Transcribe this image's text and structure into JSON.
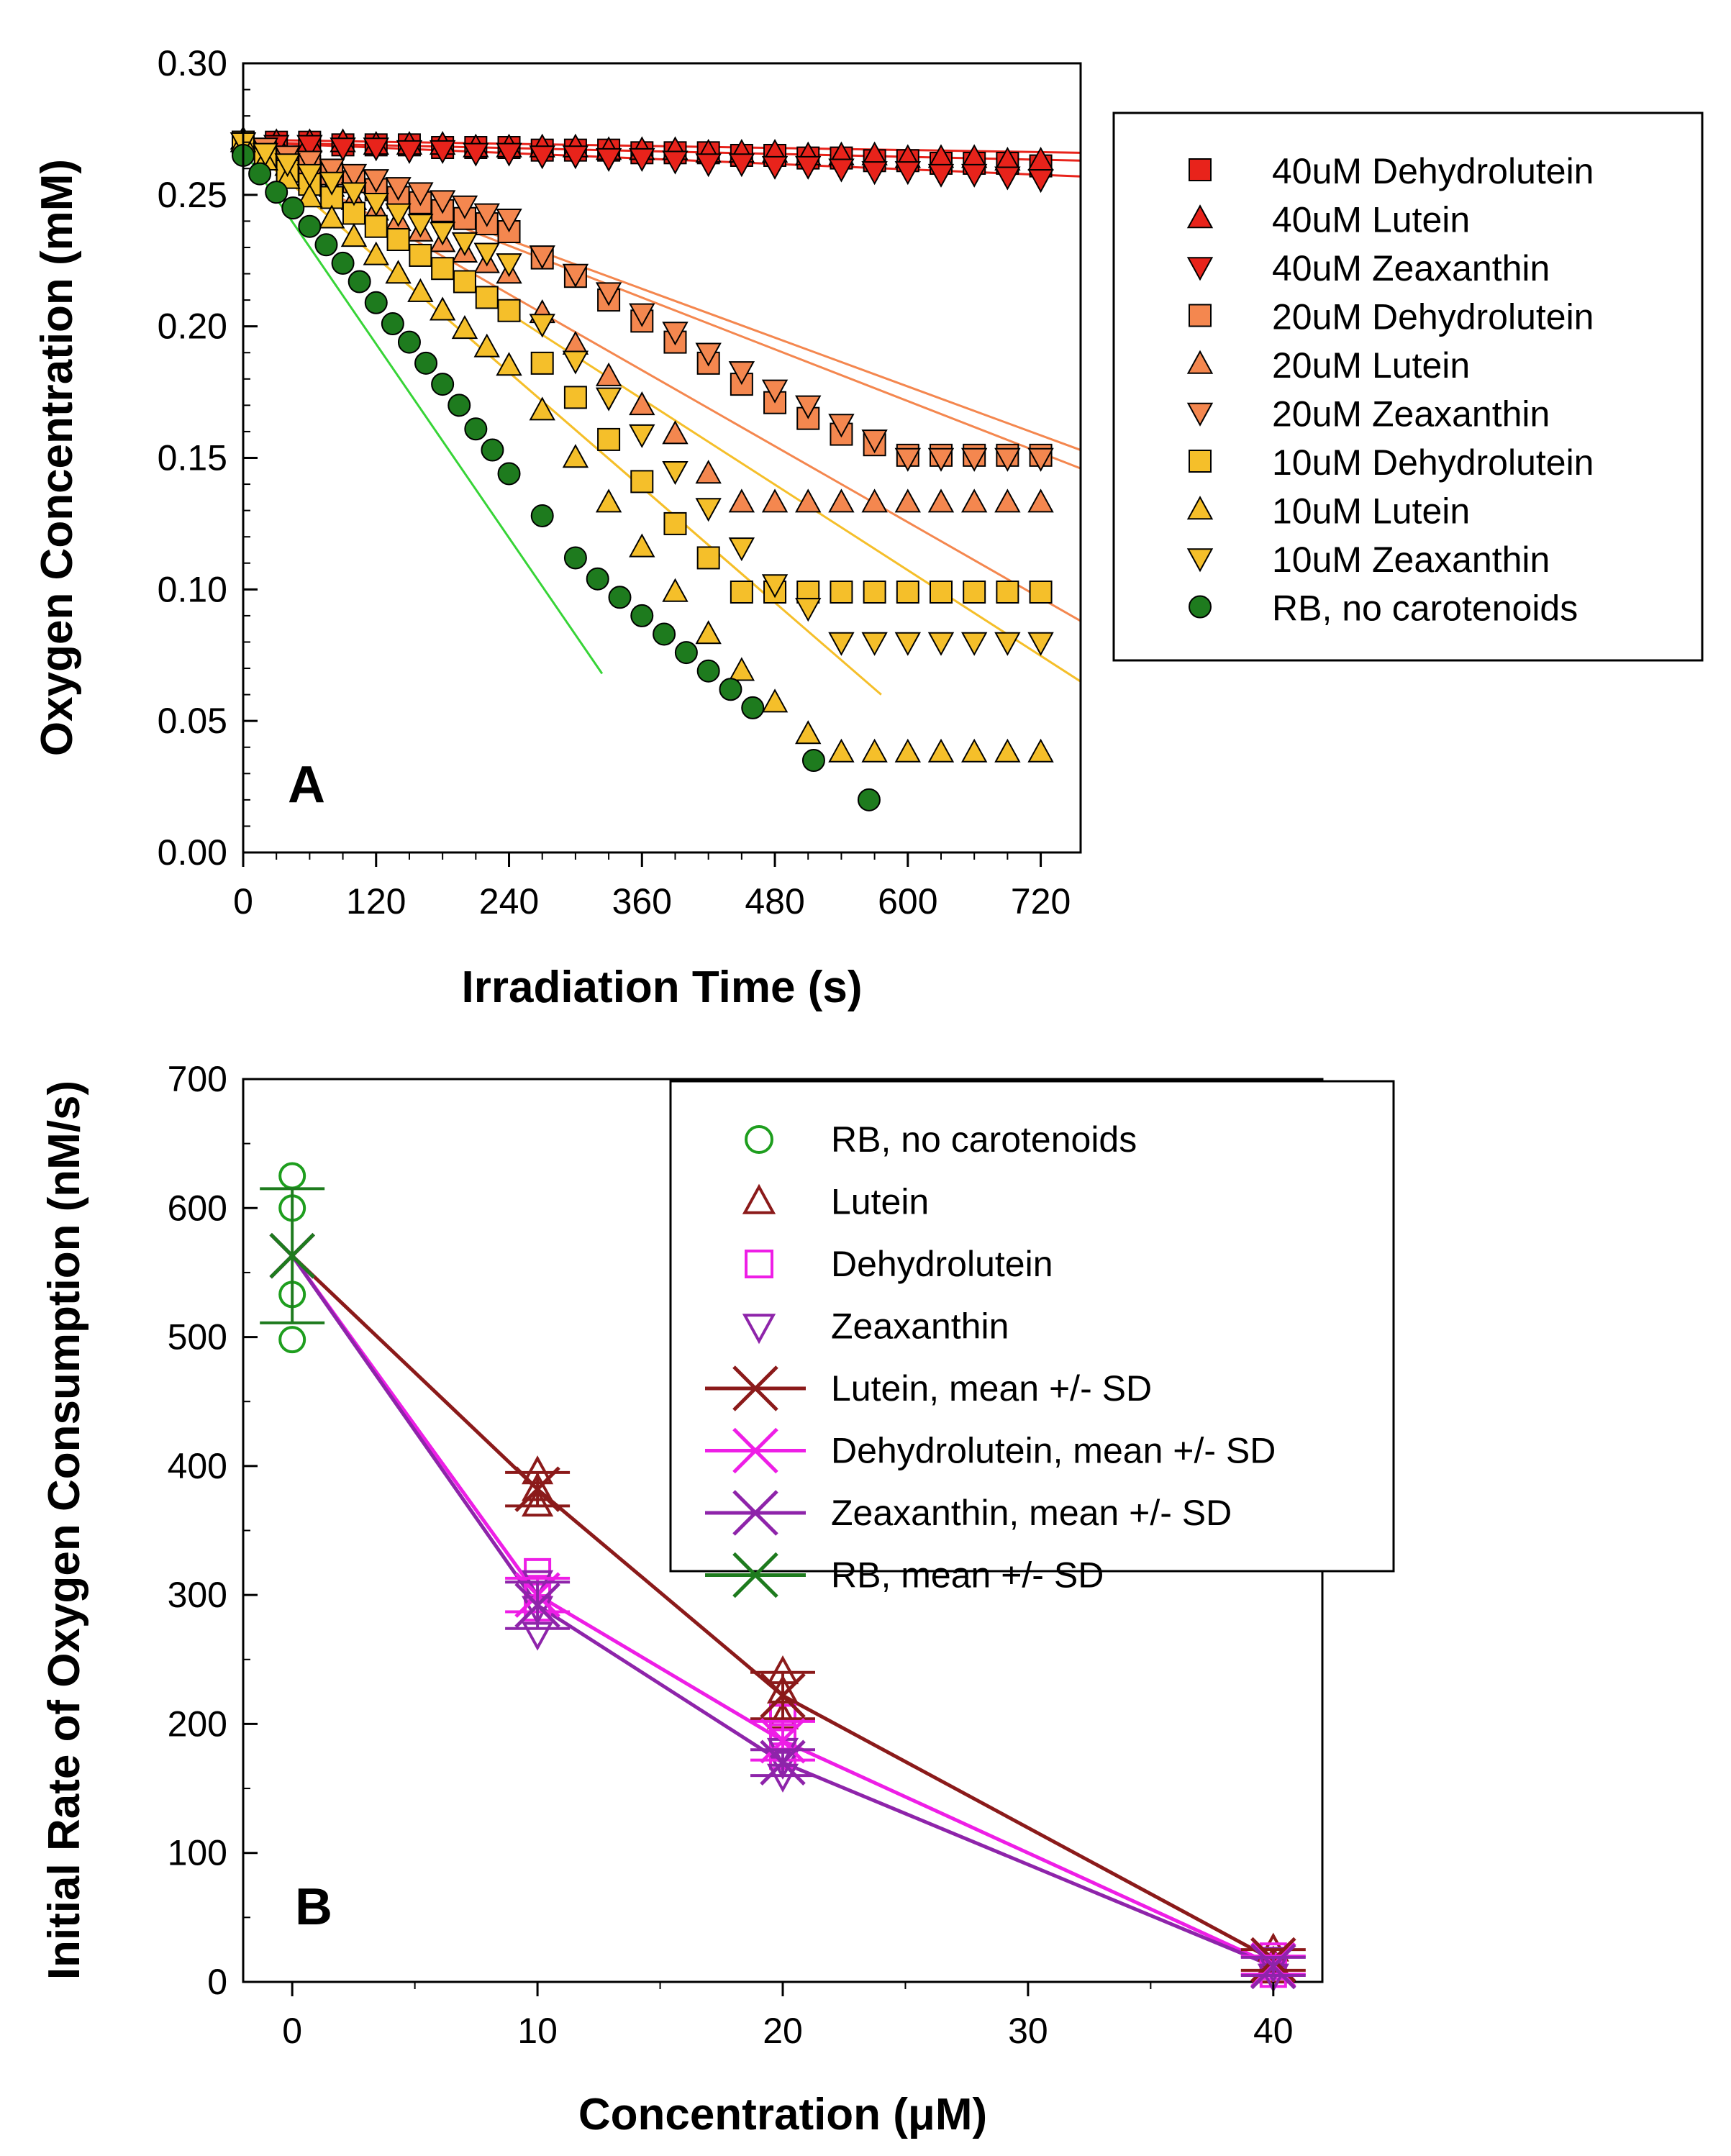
{
  "chart_data": [
    {
      "panel": "A",
      "type": "scatter",
      "xlabel": "Irradiation Time (s)",
      "ylabel": "Oxygen Concentration (mM)",
      "xlim": [
        0,
        756
      ],
      "ylim": [
        0,
        0.3
      ],
      "xticks": [
        0,
        120,
        240,
        360,
        480,
        600,
        720
      ],
      "yticks": [
        0.0,
        0.05,
        0.1,
        0.15,
        0.2,
        0.25,
        0.3
      ],
      "ytick_labels": [
        "0.00",
        "0.05",
        "0.10",
        "0.15",
        "0.20",
        "0.25",
        "0.30"
      ],
      "panel_label": "A",
      "legend_position": "right",
      "series": [
        {
          "name": "40uM Dehydrolutein",
          "marker": "square",
          "color": "#e8231b",
          "x": [
            0,
            30,
            60,
            90,
            120,
            150,
            180,
            210,
            240,
            270,
            300,
            330,
            360,
            390,
            420,
            450,
            480,
            510,
            540,
            570,
            600,
            630,
            660,
            690,
            720
          ],
          "y": [
            0.27,
            0.27,
            0.27,
            0.269,
            0.269,
            0.269,
            0.268,
            0.268,
            0.268,
            0.267,
            0.267,
            0.267,
            0.266,
            0.266,
            0.266,
            0.265,
            0.265,
            0.264,
            0.264,
            0.263,
            0.263,
            0.262,
            0.262,
            0.262,
            0.261
          ],
          "fit": [
            0,
            756,
            0.27,
            0.263
          ]
        },
        {
          "name": "40uM Lutein",
          "marker": "triangle-up",
          "color": "#e8231b",
          "x": [
            0,
            30,
            60,
            90,
            120,
            150,
            180,
            210,
            240,
            270,
            300,
            330,
            360,
            390,
            420,
            450,
            480,
            510,
            540,
            570,
            600,
            630,
            660,
            690,
            720
          ],
          "y": [
            0.271,
            0.27,
            0.27,
            0.27,
            0.269,
            0.269,
            0.269,
            0.268,
            0.268,
            0.268,
            0.268,
            0.267,
            0.267,
            0.267,
            0.266,
            0.266,
            0.266,
            0.265,
            0.265,
            0.265,
            0.264,
            0.264,
            0.264,
            0.263,
            0.263
          ],
          "fit": [
            0,
            756,
            0.271,
            0.266
          ]
        },
        {
          "name": "40uM Zeaxanthin",
          "marker": "triangle-down",
          "color": "#e8231b",
          "x": [
            0,
            30,
            60,
            90,
            120,
            150,
            180,
            210,
            240,
            270,
            300,
            330,
            360,
            390,
            420,
            450,
            480,
            510,
            540,
            570,
            600,
            630,
            660,
            690,
            720
          ],
          "y": [
            0.27,
            0.269,
            0.269,
            0.268,
            0.268,
            0.267,
            0.267,
            0.266,
            0.266,
            0.265,
            0.265,
            0.264,
            0.264,
            0.263,
            0.262,
            0.262,
            0.261,
            0.261,
            0.26,
            0.259,
            0.259,
            0.258,
            0.258,
            0.257,
            0.256
          ],
          "fit": [
            0,
            756,
            0.27,
            0.257
          ]
        },
        {
          "name": "20uM Dehydrolutein",
          "marker": "square",
          "color": "#f4874f",
          "x": [
            0,
            20,
            40,
            60,
            80,
            100,
            120,
            140,
            160,
            180,
            200,
            220,
            240,
            270,
            300,
            330,
            360,
            390,
            420,
            450,
            480,
            510,
            540,
            570,
            600,
            630,
            660,
            690,
            720
          ],
          "y": [
            0.27,
            0.267,
            0.264,
            0.261,
            0.258,
            0.255,
            0.252,
            0.249,
            0.247,
            0.244,
            0.241,
            0.239,
            0.236,
            0.226,
            0.219,
            0.21,
            0.202,
            0.194,
            0.186,
            0.178,
            0.171,
            0.165,
            0.159,
            0.155,
            0.151,
            0.151,
            0.151,
            0.151,
            0.151
          ],
          "fit": [
            0,
            756,
            0.27,
            0.146
          ]
        },
        {
          "name": "20uM Lutein",
          "marker": "triangle-up",
          "color": "#f4874f",
          "x": [
            0,
            20,
            40,
            60,
            80,
            100,
            120,
            140,
            160,
            180,
            200,
            220,
            240,
            270,
            300,
            330,
            360,
            390,
            420,
            450,
            480,
            510,
            540,
            570,
            600,
            630,
            660,
            690,
            720
          ],
          "y": [
            0.27,
            0.265,
            0.261,
            0.257,
            0.253,
            0.248,
            0.244,
            0.24,
            0.236,
            0.232,
            0.228,
            0.224,
            0.22,
            0.205,
            0.193,
            0.181,
            0.17,
            0.159,
            0.144,
            0.133,
            0.133,
            0.133,
            0.133,
            0.133,
            0.133,
            0.133,
            0.133,
            0.133,
            0.133
          ],
          "fit": [
            0,
            756,
            0.27,
            0.088
          ]
        },
        {
          "name": "20uM Zeaxanthin",
          "marker": "triangle-down",
          "color": "#f4874f",
          "x": [
            0,
            20,
            40,
            60,
            80,
            100,
            120,
            140,
            160,
            180,
            200,
            220,
            240,
            270,
            300,
            330,
            360,
            390,
            420,
            450,
            480,
            510,
            540,
            570,
            600,
            630,
            660,
            690,
            720
          ],
          "y": [
            0.27,
            0.268,
            0.265,
            0.263,
            0.26,
            0.258,
            0.256,
            0.253,
            0.251,
            0.248,
            0.246,
            0.243,
            0.241,
            0.227,
            0.22,
            0.213,
            0.205,
            0.198,
            0.19,
            0.183,
            0.176,
            0.17,
            0.163,
            0.157,
            0.15,
            0.15,
            0.15,
            0.15,
            0.15
          ],
          "fit": [
            0,
            756,
            0.27,
            0.153
          ]
        },
        {
          "name": "10uM Dehydrolutein",
          "marker": "square",
          "color": "#f5bf2a",
          "x": [
            0,
            20,
            40,
            60,
            80,
            100,
            120,
            140,
            160,
            180,
            200,
            220,
            240,
            270,
            300,
            330,
            360,
            390,
            420,
            450,
            480,
            510,
            540,
            570,
            600,
            630,
            660,
            690,
            720
          ],
          "y": [
            0.27,
            0.265,
            0.259,
            0.254,
            0.249,
            0.243,
            0.238,
            0.233,
            0.227,
            0.222,
            0.217,
            0.211,
            0.206,
            0.186,
            0.173,
            0.157,
            0.141,
            0.125,
            0.112,
            0.099,
            0.099,
            0.099,
            0.099,
            0.099,
            0.099,
            0.099,
            0.099,
            0.099,
            0.099
          ],
          "fit": [
            0,
            480,
            0.27,
            0.095
          ]
        },
        {
          "name": "10uM Lutein",
          "marker": "triangle-up",
          "color": "#f5bf2a",
          "x": [
            0,
            20,
            40,
            60,
            80,
            100,
            120,
            140,
            160,
            180,
            200,
            220,
            240,
            270,
            300,
            330,
            360,
            390,
            420,
            450,
            480,
            510,
            540,
            570,
            600,
            630,
            660,
            690,
            720
          ],
          "y": [
            0.27,
            0.263,
            0.256,
            0.249,
            0.241,
            0.234,
            0.227,
            0.22,
            0.213,
            0.206,
            0.199,
            0.192,
            0.185,
            0.168,
            0.15,
            0.133,
            0.116,
            0.099,
            0.083,
            0.069,
            0.057,
            0.045,
            0.038,
            0.038,
            0.038,
            0.038,
            0.038,
            0.038,
            0.038
          ],
          "fit": [
            0,
            576,
            0.27,
            0.06
          ]
        },
        {
          "name": "10uM Zeaxanthin",
          "marker": "triangle-down",
          "color": "#f5bf2a",
          "x": [
            0,
            20,
            40,
            60,
            80,
            100,
            120,
            140,
            160,
            180,
            200,
            220,
            240,
            270,
            300,
            330,
            360,
            390,
            420,
            450,
            480,
            510,
            540,
            570,
            600,
            630,
            660,
            690,
            720
          ],
          "y": [
            0.27,
            0.266,
            0.262,
            0.258,
            0.255,
            0.251,
            0.247,
            0.243,
            0.239,
            0.236,
            0.232,
            0.228,
            0.224,
            0.201,
            0.187,
            0.173,
            0.159,
            0.145,
            0.131,
            0.116,
            0.102,
            0.093,
            0.08,
            0.08,
            0.08,
            0.08,
            0.08,
            0.08,
            0.08
          ],
          "fit": [
            0,
            756,
            0.27,
            0.065
          ]
        },
        {
          "name": "RB, no carotenoids",
          "marker": "circle",
          "color": "#1e7b1e",
          "x": [
            0,
            15,
            30,
            45,
            60,
            75,
            90,
            105,
            120,
            135,
            150,
            165,
            180,
            195,
            210,
            225,
            240,
            270,
            300,
            320,
            340,
            360,
            380,
            400,
            420,
            440,
            460,
            515,
            565
          ],
          "y": [
            0.265,
            0.258,
            0.251,
            0.245,
            0.238,
            0.231,
            0.224,
            0.217,
            0.209,
            0.201,
            0.194,
            0.186,
            0.178,
            0.17,
            0.161,
            0.153,
            0.144,
            0.128,
            0.112,
            0.104,
            0.097,
            0.09,
            0.083,
            0.076,
            0.069,
            0.062,
            0.055,
            0.035,
            0.02
          ],
          "fit": [
            0,
            324,
            0.267,
            0.068
          ]
        }
      ]
    },
    {
      "panel": "B",
      "type": "scatter",
      "xlabel": "Concentration (μM)",
      "ylabel": "Initial Rate of Oxygen Consumption (nM/s)",
      "xlim": [
        -2,
        42
      ],
      "ylim": [
        0,
        700
      ],
      "xticks": [
        0,
        10,
        20,
        30,
        40
      ],
      "yticks": [
        0,
        100,
        200,
        300,
        400,
        500,
        600,
        700
      ],
      "panel_label": "B",
      "legend_position": "top-right",
      "series": [
        {
          "name": "RB, no carotenoids",
          "marker": "circle-open",
          "color": "#1e9e1e",
          "points": [
            [
              0,
              625
            ],
            [
              0,
              600
            ],
            [
              0,
              533
            ],
            [
              0,
              498
            ]
          ]
        },
        {
          "name": "Lutein",
          "marker": "triangle-up-open",
          "color": "#8b1a1a",
          "points": [
            [
              10,
              395
            ],
            [
              10,
              382
            ],
            [
              10,
              370
            ],
            [
              20,
              240
            ],
            [
              20,
              225
            ],
            [
              20,
              205
            ],
            [
              40,
              25
            ],
            [
              40,
              15
            ],
            [
              40,
              8
            ]
          ]
        },
        {
          "name": "Dehydrolutein",
          "marker": "square-open",
          "color": "#ee1ee6",
          "points": [
            [
              10,
              318
            ],
            [
              10,
              305
            ],
            [
              10,
              290
            ],
            [
              20,
              205
            ],
            [
              20,
              190
            ],
            [
              20,
              175
            ],
            [
              40,
              20
            ],
            [
              40,
              12
            ],
            [
              40,
              6
            ]
          ]
        },
        {
          "name": "Zeaxanthin",
          "marker": "triangle-down-open",
          "color": "#8e24aa",
          "points": [
            [
              10,
              310
            ],
            [
              10,
              290
            ],
            [
              10,
              270
            ],
            [
              20,
              180
            ],
            [
              20,
              170
            ],
            [
              20,
              160
            ],
            [
              40,
              18
            ],
            [
              40,
              12
            ],
            [
              40,
              5
            ]
          ]
        },
        {
          "name": "Lutein, mean +/- SD",
          "marker": "x",
          "color": "#8b1a1a",
          "line": true,
          "x": [
            0,
            10,
            20,
            40
          ],
          "y": [
            563,
            382,
            222,
            17
          ],
          "sd": [
            0,
            13,
            18,
            8
          ]
        },
        {
          "name": "Dehydrolutein, mean +/- SD",
          "marker": "x",
          "color": "#ee1ee6",
          "line": true,
          "x": [
            0,
            10,
            20,
            40
          ],
          "y": [
            563,
            300,
            187,
            13
          ],
          "sd": [
            0,
            13,
            15,
            7
          ]
        },
        {
          "name": "Zeaxanthin, mean +/- SD",
          "marker": "x",
          "color": "#8e24aa",
          "line": true,
          "x": [
            0,
            10,
            20,
            40
          ],
          "y": [
            563,
            292,
            170,
            12
          ],
          "sd": [
            0,
            18,
            10,
            7
          ]
        },
        {
          "name": "RB, mean +/- SD",
          "marker": "x",
          "color": "#1e7b1e",
          "line": false,
          "x": [
            0
          ],
          "y": [
            563
          ],
          "sd": [
            52
          ]
        }
      ]
    }
  ]
}
